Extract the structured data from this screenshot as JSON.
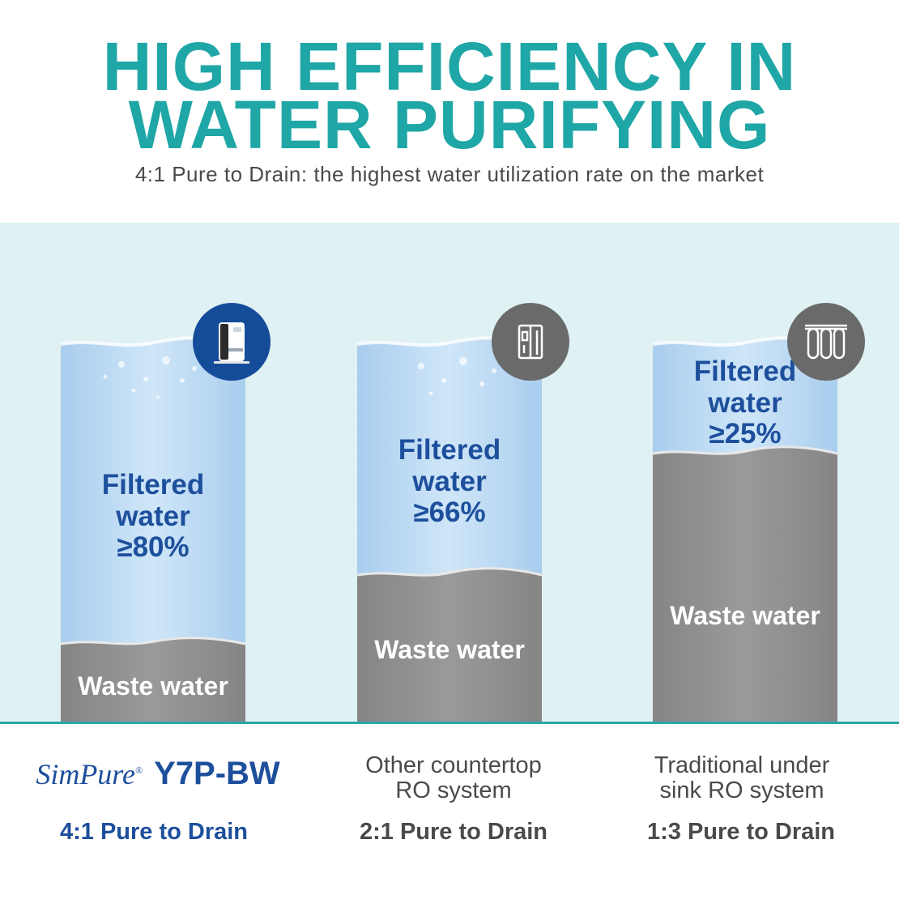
{
  "header": {
    "title_line1": "HIGH EFFICIENCY IN",
    "title_line2": "WATER PURIFYING",
    "subtitle": "4:1 Pure to Drain: the highest water utilization rate on the market"
  },
  "columns": [
    {
      "filtered_line1": "Filtered",
      "filtered_line2": "water",
      "filtered_pct": "≥80%",
      "filtered_fraction": 0.8,
      "waste_label": "Waste water",
      "icon": "water-dispenser-icon",
      "icon_bg": "#154c9a"
    },
    {
      "filtered_line1": "Filtered",
      "filtered_line2": "water",
      "filtered_pct": "≥66%",
      "filtered_fraction": 0.66,
      "waste_label": "Waste water",
      "icon": "countertop-ro-icon",
      "icon_bg": "#6a6a6a"
    },
    {
      "filtered_line1": "Filtered",
      "filtered_line2": "water",
      "filtered_pct": "≥25%",
      "filtered_fraction": 0.25,
      "waste_label": "Waste water",
      "icon": "undersink-filter-icon",
      "icon_bg": "#6a6a6a"
    }
  ],
  "footer": {
    "brand_logo": "SimPure",
    "brand_reg": "®",
    "brand_model": "Y7P-BW",
    "col2_line1": "Other countertop",
    "col2_line2": "RO system",
    "col3_line1": "Traditional under",
    "col3_line2": "sink RO system",
    "ratio1": "4:1 Pure to Drain",
    "ratio2": "2:1 Pure to Drain",
    "ratio3": "1:3 Pure to Drain"
  },
  "colors": {
    "accent_teal": "#1fa6a6",
    "brand_blue": "#1d4f9c",
    "water_blue": "#b8d9f1",
    "waste_gray": "#8d8d8d",
    "stage_bg": "#dff1f3"
  }
}
